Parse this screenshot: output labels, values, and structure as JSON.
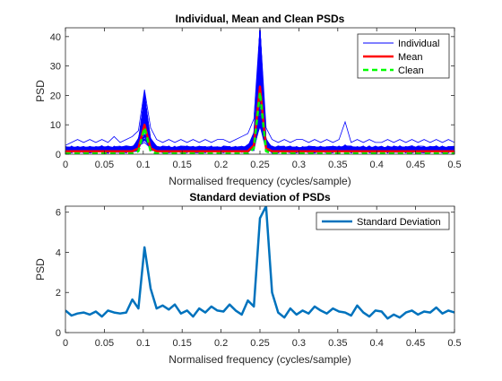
{
  "chart_data": [
    {
      "type": "line",
      "title": "Individual, Mean and Clean PSDs",
      "xlabel": "Normalised frequency (cycles/sample)",
      "ylabel": "PSD",
      "xlim": [
        0,
        0.5
      ],
      "ylim": [
        0,
        43
      ],
      "xticks": [
        0,
        0.05,
        0.1,
        0.15,
        0.2,
        0.25,
        0.3,
        0.35,
        0.4,
        0.45,
        0.5
      ],
      "xtick_labels": [
        "0",
        "0.05",
        "0.1",
        "0.15",
        "0.2",
        "0.25",
        "0.3",
        "0.35",
        "0.4",
        "0.45",
        "0.5"
      ],
      "yticks": [
        0,
        10,
        20,
        30,
        40
      ],
      "ytick_labels": [
        "0",
        "10",
        "20",
        "30",
        "40"
      ],
      "grid": false,
      "legend_position": "top-right",
      "legend": [
        "Individual",
        "Mean",
        "Clean"
      ],
      "series": [
        {
          "name": "Individual",
          "color": "#0000ff",
          "style": "solid-thin",
          "note_count": 100,
          "x": [
            0,
            0.0078,
            0.0156,
            0.0234,
            0.0313,
            0.0391,
            0.0469,
            0.0547,
            0.0625,
            0.0703,
            0.0781,
            0.0859,
            0.0938,
            0.1016,
            0.1094,
            0.1172,
            0.125,
            0.1328,
            0.1406,
            0.1484,
            0.1563,
            0.1641,
            0.1719,
            0.1797,
            0.1875,
            0.1953,
            0.2031,
            0.2109,
            0.2188,
            0.2266,
            0.2344,
            0.2422,
            0.25,
            0.2578,
            0.2656,
            0.2734,
            0.2813,
            0.2891,
            0.2969,
            0.3047,
            0.3125,
            0.3203,
            0.3281,
            0.3359,
            0.3438,
            0.3516,
            0.3594,
            0.3672,
            0.375,
            0.3828,
            0.3906,
            0.3984,
            0.4063,
            0.4141,
            0.4219,
            0.4297,
            0.4375,
            0.4453,
            0.4531,
            0.4609,
            0.4688,
            0.4766,
            0.4844,
            0.4922,
            0.5
          ],
          "envelope_max": [
            3,
            4,
            5,
            4,
            5,
            4,
            5,
            4,
            6,
            4,
            5,
            6,
            8,
            22,
            9,
            5,
            4,
            5,
            4,
            5,
            4,
            5,
            4,
            5,
            4,
            5,
            5,
            4,
            5,
            6,
            7,
            12,
            43,
            9,
            5,
            4,
            5,
            4,
            5,
            5,
            4,
            5,
            4,
            5,
            4,
            5,
            11,
            4,
            5,
            4,
            5,
            4,
            4,
            5,
            4,
            5,
            4,
            5,
            4,
            5,
            4,
            5,
            4,
            5,
            4
          ]
        },
        {
          "name": "Mean",
          "color": "#ff0000",
          "style": "solid-thick",
          "x": [
            0,
            0.0078,
            0.0156,
            0.0234,
            0.0313,
            0.0391,
            0.0469,
            0.0547,
            0.0625,
            0.0703,
            0.0781,
            0.0859,
            0.0938,
            0.1016,
            0.1094,
            0.1172,
            0.125,
            0.1328,
            0.1406,
            0.1484,
            0.1563,
            0.1641,
            0.1719,
            0.1797,
            0.1875,
            0.1953,
            0.2031,
            0.2109,
            0.2188,
            0.2266,
            0.2344,
            0.2422,
            0.25,
            0.2578,
            0.2656,
            0.2734,
            0.2813,
            0.2891,
            0.2969,
            0.3047,
            0.3125,
            0.3203,
            0.3281,
            0.3359,
            0.3438,
            0.3516,
            0.3594,
            0.3672,
            0.375,
            0.3828,
            0.3906,
            0.3984,
            0.4063,
            0.4141,
            0.4219,
            0.4297,
            0.4375,
            0.4453,
            0.4531,
            0.4609,
            0.4688,
            0.4766,
            0.4844,
            0.4922,
            0.5
          ],
          "values": [
            1,
            1,
            1,
            1,
            1,
            1,
            1,
            1,
            1,
            1,
            1,
            1,
            2,
            10,
            2,
            1,
            1,
            1,
            1,
            1,
            1,
            1,
            1,
            1,
            1,
            1,
            1,
            1,
            1,
            1,
            1,
            3,
            23,
            2,
            1,
            1,
            1,
            1,
            1,
            1,
            1,
            1,
            1,
            1,
            1,
            1,
            1,
            1,
            1,
            1,
            1,
            1,
            1,
            1,
            1,
            1,
            1,
            1,
            1,
            1,
            1,
            1,
            1,
            1,
            1
          ]
        },
        {
          "name": "Clean",
          "color": "#00ff00",
          "style": "dashed-thick",
          "x": [
            0,
            0.0078,
            0.0156,
            0.0234,
            0.0313,
            0.0391,
            0.0469,
            0.0547,
            0.0625,
            0.0703,
            0.0781,
            0.0859,
            0.0938,
            0.1016,
            0.1094,
            0.1172,
            0.125,
            0.1328,
            0.1406,
            0.1484,
            0.1563,
            0.1641,
            0.1719,
            0.1797,
            0.1875,
            0.1953,
            0.2031,
            0.2109,
            0.2188,
            0.2266,
            0.2344,
            0.2422,
            0.25,
            0.2578,
            0.2656,
            0.2734,
            0.2813,
            0.2891,
            0.2969,
            0.3047,
            0.3125,
            0.3203,
            0.3281,
            0.3359,
            0.3438,
            0.3516,
            0.3594,
            0.3672,
            0.375,
            0.3828,
            0.3906,
            0.3984,
            0.4063,
            0.4141,
            0.4219,
            0.4297,
            0.4375,
            0.4453,
            0.4531,
            0.4609,
            0.4688,
            0.4766,
            0.4844,
            0.4922,
            0.5
          ],
          "values": [
            0.2,
            0.2,
            0.2,
            0.2,
            0.2,
            0.2,
            0.2,
            0.2,
            0.2,
            0.2,
            0.2,
            0.2,
            1,
            9,
            1,
            0.2,
            0.2,
            0.2,
            0.2,
            0.2,
            0.2,
            0.2,
            0.2,
            0.2,
            0.2,
            0.2,
            0.2,
            0.2,
            0.2,
            0.2,
            0.2,
            2,
            21,
            1,
            0.2,
            0.2,
            0.2,
            0.2,
            0.2,
            0.2,
            0.2,
            0.2,
            0.2,
            0.2,
            0.2,
            0.2,
            0.2,
            0.2,
            0.2,
            0.2,
            0.2,
            0.2,
            0.2,
            0.2,
            0.2,
            0.2,
            0.2,
            0.2,
            0.2,
            0.2,
            0.2,
            0.2,
            0.2,
            0.2,
            0.2
          ]
        }
      ]
    },
    {
      "type": "line",
      "title": "Standard deviation of PSDs",
      "xlabel": "Normalised frequency (cycles/sample)",
      "ylabel": "PSD",
      "xlim": [
        0,
        0.5
      ],
      "ylim": [
        0,
        6.3
      ],
      "xticks": [
        0,
        0.05,
        0.1,
        0.15,
        0.2,
        0.25,
        0.3,
        0.35,
        0.4,
        0.45,
        0.5
      ],
      "xtick_labels": [
        "0",
        "0.05",
        "0.1",
        "0.15",
        "0.2",
        "0.25",
        "0.3",
        "0.35",
        "0.4",
        "0.45",
        "0.5"
      ],
      "yticks": [
        0,
        2,
        4,
        6
      ],
      "ytick_labels": [
        "0",
        "2",
        "4",
        "6"
      ],
      "grid": false,
      "legend_position": "top-right",
      "legend": [
        "Standard Deviation"
      ],
      "series": [
        {
          "name": "Standard Deviation",
          "color": "#0072bd",
          "style": "solid-thick",
          "x": [
            0,
            0.0078,
            0.0156,
            0.0234,
            0.0313,
            0.0391,
            0.0469,
            0.0547,
            0.0625,
            0.0703,
            0.0781,
            0.0859,
            0.0938,
            0.1016,
            0.1094,
            0.1172,
            0.125,
            0.1328,
            0.1406,
            0.1484,
            0.1563,
            0.1641,
            0.1719,
            0.1797,
            0.1875,
            0.1953,
            0.2031,
            0.2109,
            0.2188,
            0.2266,
            0.2344,
            0.2422,
            0.25,
            0.2578,
            0.2656,
            0.2734,
            0.2813,
            0.2891,
            0.2969,
            0.3047,
            0.3125,
            0.3203,
            0.3281,
            0.3359,
            0.3438,
            0.3516,
            0.3594,
            0.3672,
            0.375,
            0.3828,
            0.3906,
            0.3984,
            0.4063,
            0.4141,
            0.4219,
            0.4297,
            0.4375,
            0.4453,
            0.4531,
            0.4609,
            0.4688,
            0.4766,
            0.4844,
            0.4922,
            0.5
          ],
          "values": [
            1.1,
            0.85,
            0.95,
            1.0,
            0.9,
            1.05,
            0.8,
            1.1,
            1.0,
            0.95,
            1.0,
            1.65,
            1.2,
            4.25,
            2.2,
            1.2,
            1.35,
            1.15,
            1.4,
            0.95,
            1.1,
            0.8,
            1.2,
            1.0,
            1.3,
            1.1,
            1.05,
            1.4,
            1.1,
            0.9,
            1.6,
            1.3,
            5.7,
            6.3,
            2.0,
            1.0,
            0.75,
            1.2,
            0.9,
            1.1,
            0.95,
            1.3,
            1.1,
            0.95,
            1.2,
            1.05,
            1.0,
            0.85,
            1.35,
            1.0,
            0.8,
            1.1,
            1.05,
            0.7,
            0.9,
            0.75,
            1.0,
            1.1,
            0.9,
            1.05,
            1.0,
            1.25,
            0.95,
            1.1,
            1.0
          ]
        }
      ]
    }
  ]
}
